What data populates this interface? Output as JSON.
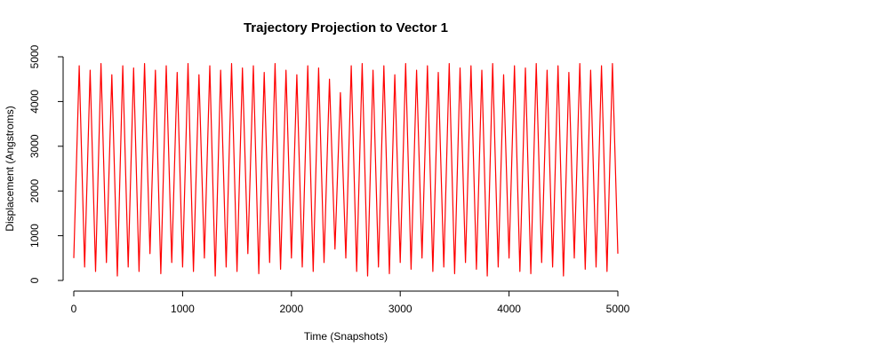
{
  "chart_data": {
    "type": "line",
    "title": "Trajectory Projection to Vector 1",
    "xlabel": "Time (Snapshots)",
    "ylabel": "Displacement (Angstroms)",
    "xlim": [
      0,
      5000
    ],
    "ylim": [
      0,
      5000
    ],
    "xticks": [
      "0",
      "1000",
      "2000",
      "3000",
      "4000",
      "5000"
    ],
    "yticks": [
      "0",
      "1000",
      "2000",
      "3000",
      "4000",
      "5000"
    ],
    "grid": false,
    "legend": "none",
    "series": [
      {
        "color": "#ff0000",
        "x": [
          0,
          50,
          100,
          150,
          200,
          250,
          300,
          350,
          400,
          450,
          500,
          550,
          600,
          650,
          700,
          750,
          800,
          850,
          900,
          950,
          1000,
          1050,
          1100,
          1150,
          1200,
          1250,
          1300,
          1350,
          1400,
          1450,
          1500,
          1550,
          1600,
          1650,
          1700,
          1750,
          1800,
          1850,
          1900,
          1950,
          2000,
          2050,
          2100,
          2150,
          2200,
          2250,
          2300,
          2350,
          2400,
          2450,
          2500,
          2550,
          2600,
          2650,
          2700,
          2750,
          2800,
          2850,
          2900,
          2950,
          3000,
          3050,
          3100,
          3150,
          3200,
          3250,
          3300,
          3350,
          3400,
          3450,
          3500,
          3550,
          3600,
          3650,
          3700,
          3750,
          3800,
          3850,
          3900,
          3950,
          4000,
          4050,
          4100,
          4150,
          4200,
          4250,
          4300,
          4350,
          4400,
          4450,
          4500,
          4550,
          4600,
          4650,
          4700,
          4750,
          4800,
          4850,
          4900,
          4950,
          5000
        ],
        "values": [
          500,
          4800,
          300,
          4700,
          200,
          4850,
          400,
          4600,
          100,
          4800,
          300,
          4750,
          200,
          4850,
          600,
          4700,
          150,
          4800,
          400,
          4650,
          300,
          4850,
          200,
          4600,
          500,
          4800,
          100,
          4700,
          300,
          4850,
          200,
          4750,
          600,
          4800,
          150,
          4650,
          400,
          4850,
          250,
          4700,
          500,
          4600,
          300,
          4800,
          200,
          4750,
          400,
          4500,
          700,
          4200,
          500,
          4800,
          200,
          4850,
          100,
          4700,
          300,
          4800,
          150,
          4600,
          400,
          4850,
          250,
          4700,
          500,
          4800,
          200,
          4650,
          300,
          4850,
          150,
          4750,
          400,
          4800,
          250,
          4700,
          100,
          4850,
          300,
          4600,
          500,
          4800,
          200,
          4750,
          150,
          4850,
          400,
          4700,
          300,
          4800,
          100,
          4650,
          500,
          4850,
          250,
          4700,
          300,
          4800,
          200,
          4850,
          600
        ]
      }
    ]
  }
}
